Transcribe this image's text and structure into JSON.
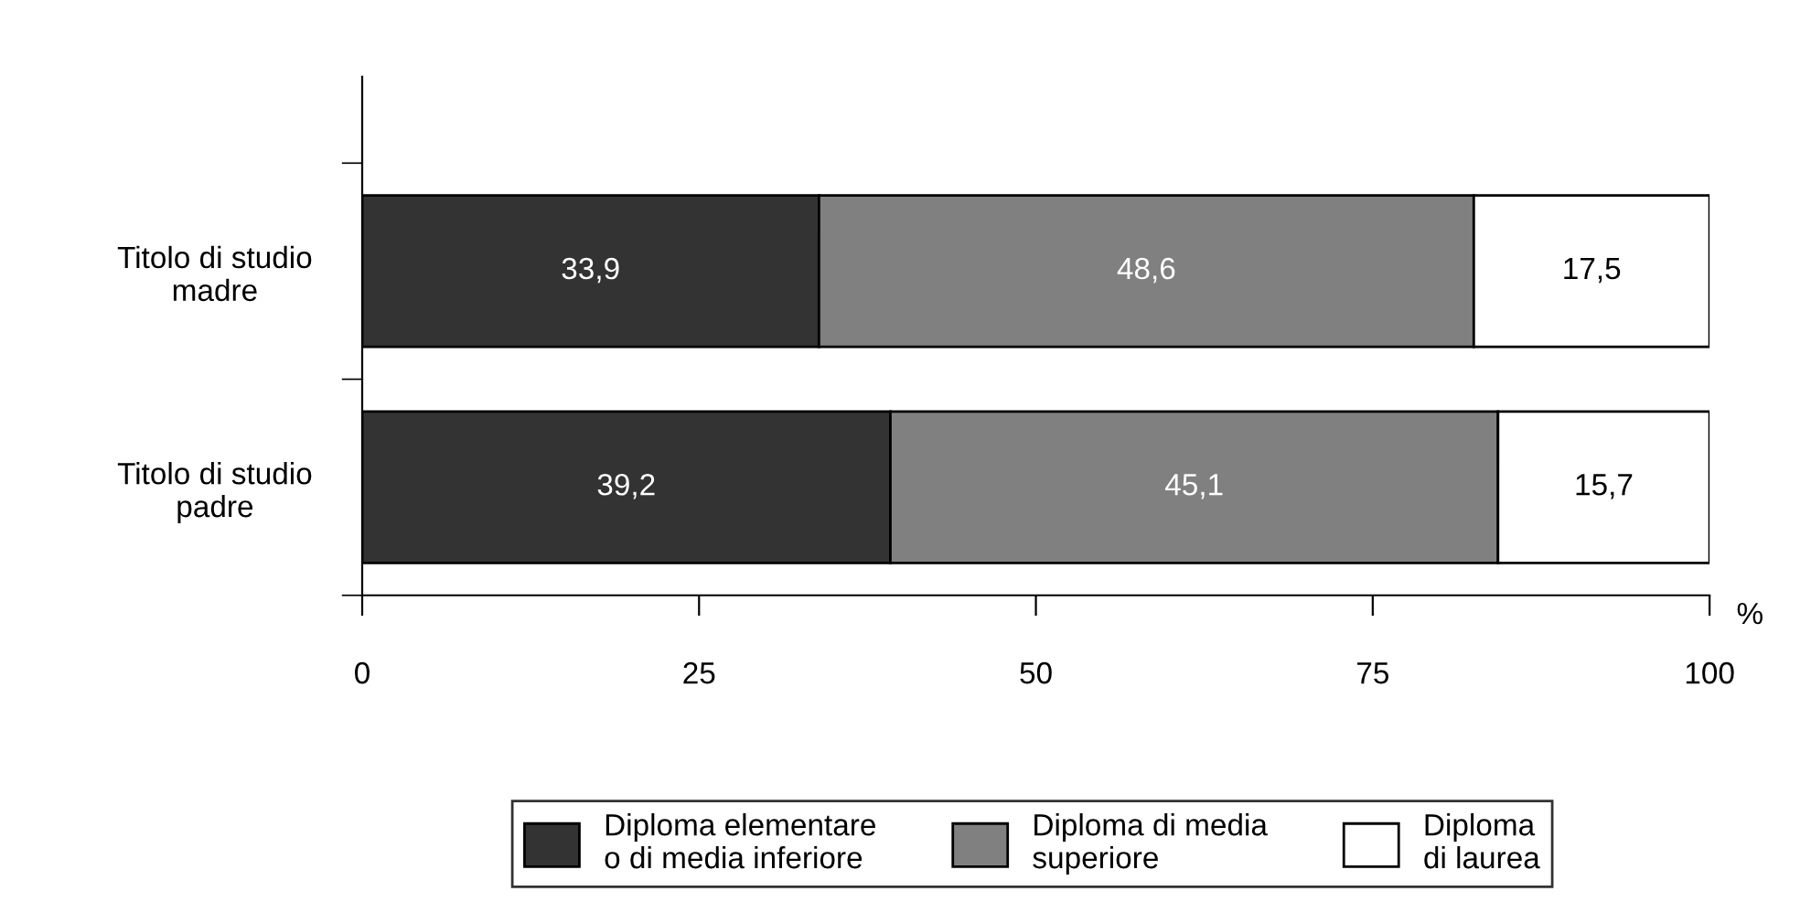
{
  "chart_data": {
    "type": "bar",
    "orientation": "horizontal",
    "stacked": true,
    "categories": [
      "Titolo di studio\nmadre",
      "Titolo di studio\npadre"
    ],
    "series": [
      {
        "name": "Diploma elementare\no di media inferiore",
        "color": "#333333",
        "values": [
          33.9,
          39.2
        ],
        "value_labels": [
          "33,9",
          "39,2"
        ]
      },
      {
        "name": "Diploma di media\nsuperiore",
        "color": "#808080",
        "values": [
          48.6,
          45.1
        ],
        "value_labels": [
          "48,6",
          "45,1"
        ]
      },
      {
        "name": "Diploma\ndi laurea",
        "color": "#ffffff",
        "values": [
          17.5,
          15.7
        ],
        "value_labels": [
          "17,5",
          "15,7"
        ]
      }
    ],
    "xlim": [
      0,
      100
    ],
    "xticks": [
      0,
      25,
      50,
      75,
      100
    ],
    "xlabel": "%",
    "legend": "bottom",
    "grid": false
  }
}
